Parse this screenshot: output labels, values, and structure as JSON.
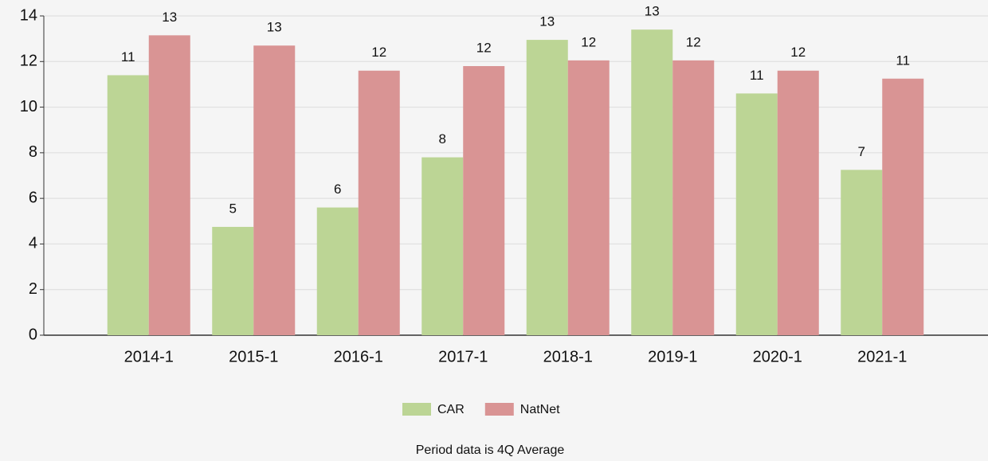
{
  "chart_data": {
    "type": "bar",
    "categories": [
      "2014-1",
      "2015-1",
      "2016-1",
      "2017-1",
      "2018-1",
      "2019-1",
      "2020-1",
      "2021-1"
    ],
    "series": [
      {
        "name": "CAR",
        "color": "#bcd595",
        "values": [
          11.4,
          4.75,
          5.6,
          7.8,
          12.95,
          13.4,
          10.6,
          7.25
        ],
        "value_labels": [
          "11",
          "5",
          "6",
          "8",
          "13",
          "13",
          "11",
          "7"
        ]
      },
      {
        "name": "NatNet",
        "color": "#d99494",
        "values": [
          13.15,
          12.7,
          11.6,
          11.8,
          12.05,
          12.05,
          11.6,
          11.25
        ],
        "value_labels": [
          "13",
          "13",
          "12",
          "12",
          "12",
          "12",
          "12",
          "11"
        ]
      }
    ],
    "ylim": [
      0,
      14
    ],
    "yticks": [
      0,
      2,
      4,
      6,
      8,
      10,
      12,
      14
    ],
    "grid": true,
    "footnote": "Period data is 4Q Average"
  }
}
